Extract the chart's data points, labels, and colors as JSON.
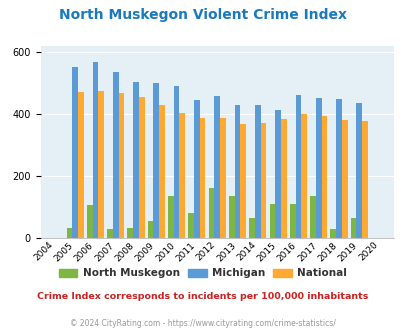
{
  "title": "North Muskegon Violent Crime Index",
  "years": [
    2004,
    2005,
    2006,
    2007,
    2008,
    2009,
    2010,
    2011,
    2012,
    2013,
    2014,
    2015,
    2016,
    2017,
    2018,
    2019,
    2020
  ],
  "north_muskegon": [
    0,
    30,
    105,
    28,
    32,
    55,
    135,
    80,
    160,
    135,
    63,
    108,
    108,
    135,
    28,
    63,
    0
  ],
  "michigan": [
    0,
    553,
    568,
    538,
    503,
    500,
    492,
    447,
    458,
    430,
    430,
    413,
    462,
    453,
    450,
    435,
    0
  ],
  "national": [
    0,
    472,
    474,
    467,
    457,
    430,
    405,
    388,
    388,
    368,
    372,
    383,
    400,
    395,
    381,
    379,
    0
  ],
  "ylim": [
    0,
    620
  ],
  "yticks": [
    0,
    200,
    400,
    600
  ],
  "color_nm": "#7db642",
  "color_mi": "#5b9bd5",
  "color_na": "#ffa832",
  "bg_color": "#e4f0f5",
  "subtitle": "Crime Index corresponds to incidents per 100,000 inhabitants",
  "footer": "© 2024 CityRating.com - https://www.cityrating.com/crime-statistics/",
  "title_color": "#1a7abf",
  "subtitle_color": "#cc2222",
  "footer_color": "#999999",
  "legend_labels": [
    "North Muskegon",
    "Michigan",
    "National"
  ]
}
